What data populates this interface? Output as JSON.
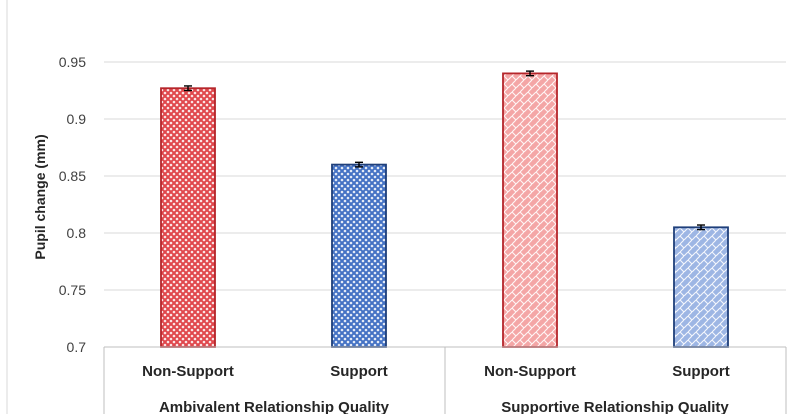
{
  "chart_data": {
    "type": "bar",
    "title": "",
    "xlabel": "",
    "ylabel": "Pupil change (mm)",
    "ylim": [
      0.7,
      0.95
    ],
    "yticks": [
      "0.7",
      "0.75",
      "0.8",
      "0.85",
      "0.9",
      "0.95"
    ],
    "grid": true,
    "groups": [
      "Ambivalent Relationship Quality",
      "Supportive Relationship Quality"
    ],
    "categories": [
      "Non-Support",
      "Support",
      "Non-Support",
      "Support"
    ],
    "values": [
      0.927,
      0.86,
      0.94,
      0.805
    ],
    "errors": [
      0.002,
      0.002,
      0.002,
      0.002
    ],
    "colors": {
      "ambivalent_non_support": "#e0474c",
      "ambivalent_support": "#4472c4",
      "supportive_non_support": "#f4a6a6",
      "supportive_support": "#9db6e4"
    }
  }
}
